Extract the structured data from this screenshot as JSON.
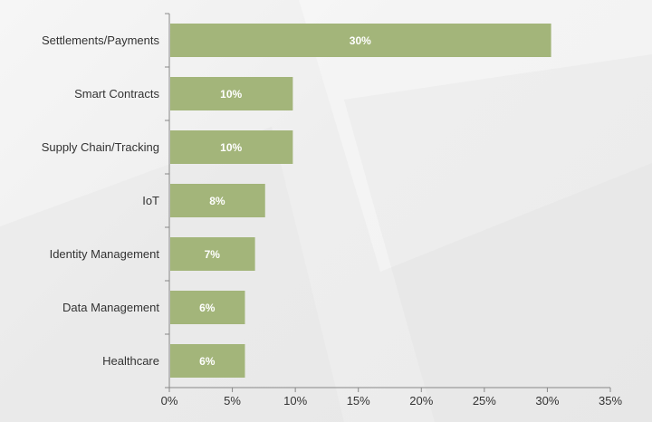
{
  "chart_data": {
    "type": "bar",
    "orientation": "horizontal",
    "categories": [
      "Settlements/Payments",
      "Smart Contracts",
      "Supply Chain/Tracking",
      "IoT",
      "Identity Management",
      "Data Management",
      "Healthcare"
    ],
    "values": [
      30.3,
      9.8,
      9.8,
      7.6,
      6.8,
      6.0,
      6.0
    ],
    "data_labels": [
      "30%",
      "10%",
      "10%",
      "8%",
      "7%",
      "6%",
      "6%"
    ],
    "xlim": [
      0,
      35
    ],
    "xticks": [
      0,
      5,
      10,
      15,
      20,
      25,
      30,
      35
    ],
    "xtick_labels": [
      "0%",
      "5%",
      "10%",
      "15%",
      "20%",
      "25%",
      "30%",
      "35%"
    ],
    "grid": false,
    "legend": "none",
    "title": "",
    "xlabel": "",
    "ylabel": ""
  },
  "colors": {
    "bar": "#a3b57a",
    "axis": "#888888",
    "background": "#f0f0f0"
  }
}
